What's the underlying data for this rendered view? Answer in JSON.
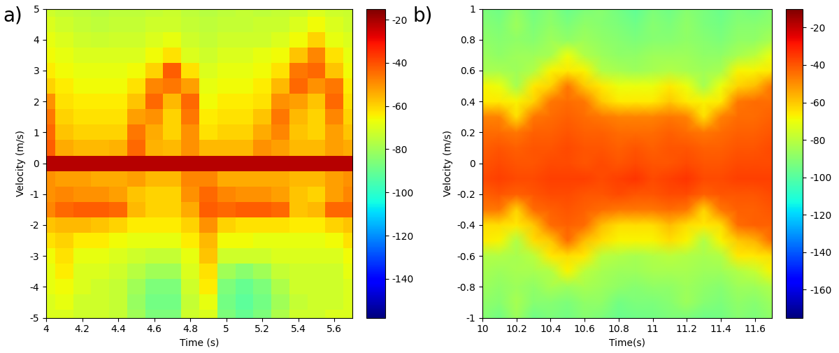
{
  "chart_data": [
    {
      "type": "heatmap",
      "title": "a)",
      "x_label": "Time (s)",
      "y_label": "Velocity (m/s)",
      "xlim": [
        4,
        5.7
      ],
      "ylim": [
        -5,
        5
      ],
      "xticks": [
        4,
        4.2,
        4.4,
        4.6,
        4.8,
        5,
        5.2,
        5.4,
        5.6
      ],
      "yticks": [
        -5,
        -4,
        -3,
        -2,
        -1,
        0,
        1,
        2,
        3,
        4,
        5
      ],
      "x": [
        4,
        4.1,
        4.2,
        4.3,
        4.4,
        4.5,
        4.6,
        4.7,
        4.8,
        4.9,
        5,
        5.1,
        5.2,
        5.3,
        5.4,
        5.5,
        5.6,
        5.7
      ],
      "y": [
        -5,
        -4.5,
        -4,
        -3.5,
        -3,
        -2.5,
        -2,
        -1.5,
        -1,
        -0.5,
        0,
        0.5,
        1,
        1.5,
        2,
        2.5,
        3,
        3.5,
        4,
        4.5,
        5
      ],
      "cells": [
        [
          -70,
          -70,
          -72,
          -72,
          -74,
          -80,
          -86,
          -86,
          -72,
          -70,
          -86,
          -90,
          -86,
          -78,
          -72,
          -72,
          -70,
          -70
        ],
        [
          -70,
          -68,
          -72,
          -72,
          -74,
          -82,
          -88,
          -88,
          -74,
          -68,
          -88,
          -92,
          -88,
          -80,
          -74,
          -72,
          -72,
          -70
        ],
        [
          -68,
          -66,
          -70,
          -72,
          -74,
          -80,
          -86,
          -86,
          -72,
          -64,
          -86,
          -90,
          -86,
          -78,
          -72,
          -72,
          -72,
          -70
        ],
        [
          -68,
          -64,
          -70,
          -70,
          -72,
          -76,
          -80,
          -80,
          -70,
          -62,
          -80,
          -84,
          -80,
          -74,
          -72,
          -72,
          -72,
          -68
        ],
        [
          -66,
          -62,
          -68,
          -68,
          -70,
          -72,
          -74,
          -74,
          -68,
          -58,
          -72,
          -72,
          -72,
          -70,
          -70,
          -70,
          -70,
          -66
        ],
        [
          -62,
          -60,
          -64,
          -64,
          -66,
          -68,
          -68,
          -68,
          -64,
          -56,
          -66,
          -66,
          -68,
          -68,
          -68,
          -68,
          -66,
          -62
        ],
        [
          -58,
          -56,
          -56,
          -58,
          -60,
          -64,
          -64,
          -64,
          -60,
          -50,
          -60,
          -62,
          -62,
          -62,
          -64,
          -64,
          -60,
          -58
        ],
        [
          -48,
          -44,
          -42,
          -42,
          -44,
          -56,
          -60,
          -60,
          -54,
          -42,
          -44,
          -42,
          -42,
          -44,
          -58,
          -56,
          -44,
          -44
        ],
        [
          -50,
          -48,
          -50,
          -50,
          -52,
          -58,
          -60,
          -60,
          -50,
          -44,
          -48,
          -50,
          -50,
          -52,
          -58,
          -60,
          -52,
          -48
        ],
        [
          -50,
          -52,
          -52,
          -54,
          -54,
          -52,
          -56,
          -56,
          -48,
          -48,
          -54,
          -54,
          -54,
          -54,
          -56,
          -56,
          -52,
          -50
        ],
        [
          -22,
          -22,
          -22,
          -22,
          -22,
          -22,
          -22,
          -22,
          -22,
          -22,
          -22,
          -22,
          -22,
          -22,
          -22,
          -22,
          -22,
          -22
        ],
        [
          -42,
          -54,
          -56,
          -56,
          -55,
          -44,
          -55,
          -56,
          -50,
          -56,
          -56,
          -56,
          -50,
          -52,
          -56,
          -56,
          -52,
          -54
        ],
        [
          -44,
          -58,
          -60,
          -60,
          -60,
          -46,
          -54,
          -60,
          -50,
          -62,
          -60,
          -60,
          -54,
          -48,
          -58,
          -60,
          -52,
          -58
        ],
        [
          -46,
          -60,
          -62,
          -62,
          -62,
          -52,
          -50,
          -60,
          -46,
          -64,
          -62,
          -62,
          -58,
          -46,
          -56,
          -60,
          -48,
          -60
        ],
        [
          -50,
          -62,
          -64,
          -64,
          -64,
          -58,
          -44,
          -56,
          -44,
          -66,
          -64,
          -64,
          -62,
          -50,
          -52,
          -58,
          -44,
          -62
        ],
        [
          -60,
          -64,
          -66,
          -66,
          -66,
          -62,
          -48,
          -46,
          -52,
          -68,
          -66,
          -66,
          -64,
          -56,
          -44,
          -50,
          -46,
          -64
        ],
        [
          -64,
          -66,
          -68,
          -68,
          -68,
          -66,
          -60,
          -42,
          -62,
          -70,
          -68,
          -68,
          -66,
          -62,
          -46,
          -44,
          -58,
          -66
        ],
        [
          -66,
          -68,
          -70,
          -70,
          -70,
          -70,
          -66,
          -62,
          -70,
          -72,
          -70,
          -70,
          -68,
          -66,
          -58,
          -48,
          -62,
          -68
        ],
        [
          -68,
          -70,
          -72,
          -73,
          -72,
          -72,
          -70,
          -68,
          -72,
          -74,
          -72,
          -72,
          -72,
          -70,
          -66,
          -60,
          -68,
          -70
        ],
        [
          -70,
          -72,
          -74,
          -75,
          -74,
          -74,
          -72,
          -72,
          -74,
          -75,
          -74,
          -74,
          -73,
          -73,
          -70,
          -66,
          -70,
          -72
        ],
        [
          -72,
          -74,
          -75,
          -76,
          -75,
          -75,
          -74,
          -73,
          -75,
          -76,
          -75,
          -74,
          -75,
          -74,
          -73,
          -70,
          -72,
          -73
        ]
      ],
      "colorbar_range": [
        -158,
        -15
      ],
      "colorbar_ticks": [
        -140,
        -120,
        -100,
        -80,
        -60,
        -40,
        -20
      ]
    },
    {
      "type": "heatmap",
      "title": "b)",
      "x_label": "Time(s)",
      "y_label": "Velocity (m/s)",
      "xlim": [
        10,
        11.7
      ],
      "ylim": [
        -1,
        1
      ],
      "xticks": [
        10,
        10.2,
        10.4,
        10.6,
        10.8,
        11,
        11.2,
        11.4,
        11.6
      ],
      "yticks": [
        -1,
        -0.8,
        -0.6,
        -0.4,
        -0.2,
        0,
        0.2,
        0.4,
        0.6,
        0.8,
        1
      ],
      "x": [
        10,
        10.1,
        10.2,
        10.3,
        10.4,
        10.5,
        10.6,
        10.7,
        10.8,
        10.9,
        11,
        11.1,
        11.2,
        11.3,
        11.4,
        11.5,
        11.6,
        11.7
      ],
      "y": [
        -1,
        -0.9,
        -0.8,
        -0.7,
        -0.6,
        -0.5,
        -0.4,
        -0.3,
        -0.2,
        -0.1,
        0,
        0.1,
        0.2,
        0.3,
        0.4,
        0.5,
        0.6,
        0.7,
        0.8,
        0.9,
        1
      ],
      "cells": [
        [
          -90,
          -94,
          -86,
          -95,
          -92,
          -94,
          -90,
          -92,
          -96,
          -95,
          -94,
          -92,
          -92,
          -95,
          -94,
          -90,
          -92,
          -88
        ],
        [
          -88,
          -90,
          -84,
          -90,
          -90,
          -92,
          -88,
          -88,
          -94,
          -92,
          -92,
          -90,
          -86,
          -90,
          -92,
          -88,
          -90,
          -86
        ],
        [
          -86,
          -88,
          -86,
          -88,
          -84,
          -86,
          -84,
          -86,
          -88,
          -90,
          -88,
          -88,
          -86,
          -88,
          -90,
          -86,
          -86,
          -82
        ],
        [
          -84,
          -86,
          -84,
          -84,
          -82,
          -68,
          -80,
          -84,
          -86,
          -86,
          -84,
          -84,
          -84,
          -86,
          -86,
          -82,
          -78,
          -68
        ],
        [
          -82,
          -82,
          -84,
          -80,
          -66,
          -64,
          -66,
          -80,
          -82,
          -84,
          -82,
          -80,
          -82,
          -84,
          -82,
          -66,
          -66,
          -64
        ],
        [
          -66,
          -68,
          -82,
          -64,
          -60,
          -44,
          -58,
          -64,
          -68,
          -68,
          -68,
          -64,
          -68,
          -82,
          -68,
          -60,
          -56,
          -44
        ],
        [
          -64,
          -64,
          -66,
          -60,
          -44,
          -42,
          -44,
          -58,
          -64,
          -64,
          -64,
          -58,
          -64,
          -66,
          -64,
          -44,
          -42,
          -42
        ],
        [
          -46,
          -46,
          -62,
          -44,
          -42,
          -40,
          -42,
          -44,
          -46,
          -46,
          -46,
          -44,
          -46,
          -62,
          -46,
          -42,
          -42,
          -40
        ],
        [
          -42,
          -40,
          -42,
          -40,
          -38,
          -38,
          -40,
          -40,
          -38,
          -40,
          -40,
          -38,
          -38,
          -42,
          -40,
          -40,
          -40,
          -38
        ],
        [
          -38,
          -36,
          -38,
          -38,
          -36,
          -36,
          -36,
          -38,
          -36,
          -34,
          -38,
          -36,
          -34,
          -38,
          -38,
          -36,
          -36,
          -36
        ],
        [
          -40,
          -38,
          -40,
          -40,
          -38,
          -38,
          -40,
          -38,
          -40,
          -38,
          -40,
          -40,
          -38,
          -40,
          -40,
          -38,
          -38,
          -38
        ],
        [
          -42,
          -40,
          -42,
          -40,
          -40,
          -38,
          -40,
          -40,
          -42,
          -40,
          -42,
          -40,
          -40,
          -42,
          -42,
          -40,
          -40,
          -38
        ],
        [
          -44,
          -44,
          -46,
          -42,
          -42,
          -40,
          -42,
          -42,
          -44,
          -44,
          -44,
          -42,
          -44,
          -46,
          -44,
          -42,
          -42,
          -40
        ],
        [
          -48,
          -48,
          -64,
          -46,
          -44,
          -42,
          -44,
          -46,
          -48,
          -48,
          -48,
          -46,
          -48,
          -64,
          -48,
          -44,
          -44,
          -42
        ],
        [
          -66,
          -66,
          -68,
          -62,
          -46,
          -44,
          -46,
          -60,
          -66,
          -66,
          -66,
          -60,
          -66,
          -68,
          -66,
          -46,
          -44,
          -44
        ],
        [
          -68,
          -70,
          -84,
          -66,
          -62,
          -46,
          -60,
          -66,
          -70,
          -70,
          -70,
          -66,
          -70,
          -84,
          -70,
          -62,
          -58,
          -46
        ],
        [
          -84,
          -84,
          -86,
          -82,
          -68,
          -66,
          -68,
          -82,
          -84,
          -86,
          -84,
          -82,
          -84,
          -86,
          -84,
          -68,
          -68,
          -66
        ],
        [
          -86,
          -88,
          -86,
          -86,
          -84,
          -70,
          -82,
          -86,
          -88,
          -88,
          -86,
          -86,
          -86,
          -88,
          -88,
          -84,
          -80,
          -70
        ],
        [
          -88,
          -90,
          -88,
          -90,
          -86,
          -88,
          -86,
          -88,
          -90,
          -92,
          -90,
          -90,
          -88,
          -90,
          -92,
          -88,
          -88,
          -84
        ],
        [
          -90,
          -92,
          -86,
          -92,
          -88,
          -92,
          -88,
          -90,
          -92,
          -95,
          -90,
          -92,
          -88,
          -92,
          -94,
          -90,
          -90,
          -88
        ],
        [
          -92,
          -95,
          -88,
          -94,
          -90,
          -96,
          -92,
          -90,
          -94,
          -98,
          -92,
          -95,
          -90,
          -93,
          -96,
          -92,
          -94,
          -90
        ]
      ],
      "colorbar_range": [
        -175,
        -10
      ],
      "colorbar_ticks": [
        -160,
        -140,
        -120,
        -100,
        -80,
        -60,
        -40,
        -20
      ]
    }
  ]
}
